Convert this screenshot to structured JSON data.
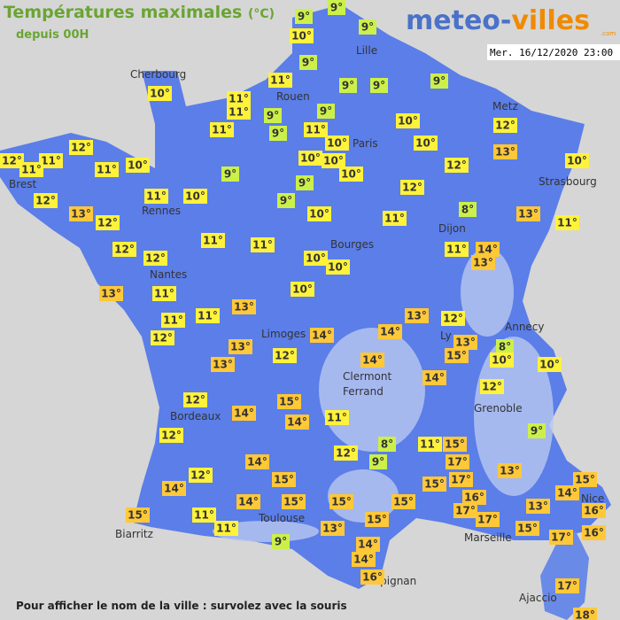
{
  "header": {
    "title": "Températures maximales",
    "unit": "(°C)",
    "subtitle": "depuis 00H",
    "logo_main": "meteo-",
    "logo_accent": "villes",
    "logo_suffix": ".com",
    "timestamp": "Mer. 16/12/2020 23:00"
  },
  "cities": [
    "Cherbourg",
    "Lille",
    "Rouen",
    "Metz",
    "Paris",
    "Brest",
    "Strasbourg",
    "Rennes",
    "Dijon",
    "Bourges",
    "Nantes",
    "Annecy",
    "Limoges",
    "Ly",
    "Clermont",
    "Ferrand",
    "Grenoble",
    "Bordeaux",
    "Toulouse",
    "Nice",
    "Biarritz",
    "Marseille",
    "Perpignan",
    "Ajaccio"
  ],
  "temperatures": [
    "9°",
    "9°",
    "10°",
    "9°",
    "9°",
    "9°",
    "9°",
    "9°",
    "11°",
    "10°",
    "11°",
    "11°",
    "9°",
    "9°",
    "11°",
    "9°",
    "11°",
    "10°",
    "10°",
    "10°",
    "12°",
    "13°",
    "10°",
    "12°",
    "12°",
    "11°",
    "11°",
    "11°",
    "10°",
    "10°",
    "10°",
    "9°",
    "10°",
    "12°",
    "9°",
    "12°",
    "11°",
    "10°",
    "9°",
    "12°",
    "13°",
    "12°",
    "10°",
    "11°",
    "8°",
    "13°",
    "11°",
    "11°",
    "11°",
    "12°",
    "12°",
    "11°",
    "14°",
    "13°",
    "10°",
    "10°",
    "13°",
    "11°",
    "10°",
    "13°",
    "11°",
    "13°",
    "12°",
    "11°",
    "12°",
    "14°",
    "14°",
    "13°",
    "8°",
    "13°",
    "12°",
    "15°",
    "10°",
    "10°",
    "13°",
    "14°",
    "14°",
    "12°",
    "12°",
    "15°",
    "14°",
    "14°",
    "11°",
    "9°",
    "12°",
    "8°",
    "11°",
    "15°",
    "12°",
    "9°",
    "14°",
    "17°",
    "13°",
    "12°",
    "15°",
    "17°",
    "15°",
    "15°",
    "14°",
    "14°",
    "16°",
    "14°",
    "15°",
    "15°",
    "15°",
    "13°",
    "16°",
    "17°",
    "17°",
    "15°",
    "11°",
    "15°",
    "11°",
    "13°",
    "15°",
    "16°",
    "17°",
    "9°",
    "14°",
    "14°",
    "16°",
    "17°",
    "18°"
  ],
  "footer": "Pour afficher le nom de la ville : survolez avec la souris"
}
